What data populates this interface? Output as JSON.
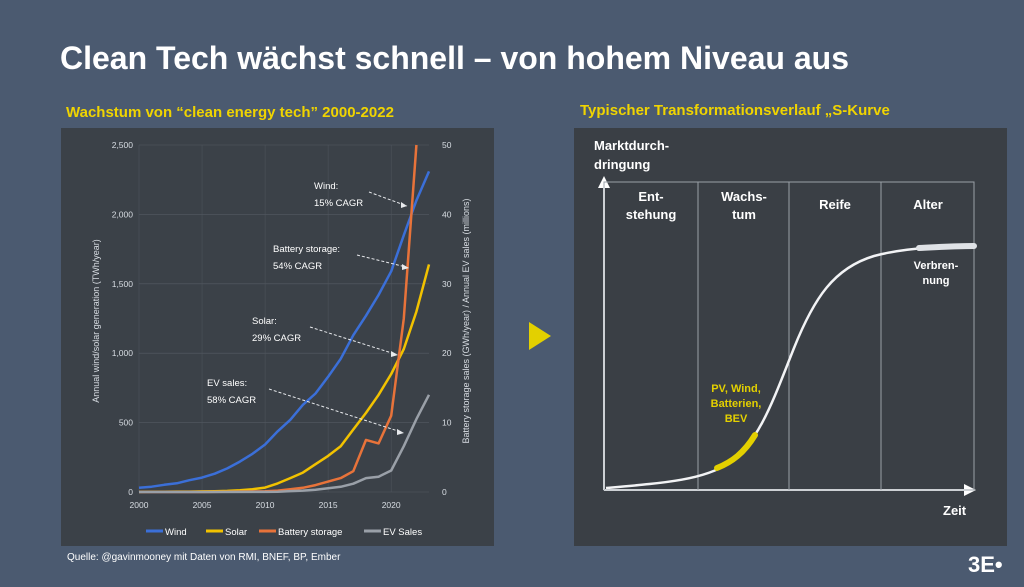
{
  "slide": {
    "title": "Clean Tech wächst schnell – von hohem Niveau aus",
    "left_subtitle": "Wachstum von “clean energy tech” 2000-2022",
    "right_subtitle": "Typischer Transformationsverlauf „S-Kurve",
    "source": "Quelle: @gavinmooney mit Daten von RMI, BNEF, BP, Ember",
    "brand": "3E",
    "brand_dot": "•"
  },
  "colors": {
    "wind": "#3b6fd8",
    "solar": "#f2c200",
    "battery": "#e8733a",
    "ev": "#9aa0a8",
    "accent_yellow": "#e3d000"
  },
  "chart_data": [
    {
      "type": "line",
      "title": "",
      "xlabel": "",
      "ylabel": "Annual wind/solar generation (TWh/year)",
      "y2label": "Battery storage sales (GWh/year) / Annual EV sales (millions)",
      "xlim": [
        2000,
        2023
      ],
      "ylim": [
        0,
        2500
      ],
      "y2lim": [
        0,
        50
      ],
      "x_ticks": [
        "2000",
        "2005",
        "2010",
        "2015",
        "2020"
      ],
      "y_ticks": [
        "0",
        "500",
        "1,000",
        "1,500",
        "2,000",
        "2,500"
      ],
      "y2_ticks": [
        "0",
        "10",
        "20",
        "30",
        "40",
        "50"
      ],
      "grid": true,
      "legend_position": "bottom",
      "series": [
        {
          "name": "Wind",
          "axis": "left",
          "color": "#3b6fd8",
          "x": [
            2000,
            2001,
            2002,
            2003,
            2004,
            2005,
            2006,
            2007,
            2008,
            2009,
            2010,
            2011,
            2012,
            2013,
            2014,
            2015,
            2016,
            2017,
            2018,
            2019,
            2020,
            2021,
            2022,
            2023
          ],
          "values": [
            31,
            38,
            52,
            63,
            85,
            104,
            132,
            170,
            219,
            275,
            342,
            437,
            520,
            628,
            710,
            830,
            960,
            1130,
            1270,
            1420,
            1590,
            1850,
            2100,
            2310
          ]
        },
        {
          "name": "Solar",
          "axis": "left",
          "color": "#f2c200",
          "x": [
            2000,
            2001,
            2002,
            2003,
            2004,
            2005,
            2006,
            2007,
            2008,
            2009,
            2010,
            2011,
            2012,
            2013,
            2014,
            2015,
            2016,
            2017,
            2018,
            2019,
            2020,
            2021,
            2022,
            2023
          ],
          "values": [
            1,
            2,
            2,
            3,
            3,
            4,
            6,
            8,
            12,
            20,
            32,
            62,
            100,
            140,
            200,
            260,
            330,
            450,
            570,
            700,
            850,
            1030,
            1300,
            1640
          ]
        },
        {
          "name": "Battery storage",
          "axis": "right",
          "color": "#e8733a",
          "x": [
            2000,
            2005,
            2010,
            2011,
            2012,
            2013,
            2014,
            2015,
            2016,
            2017,
            2018,
            2019,
            2020,
            2021,
            2022
          ],
          "values": [
            0,
            0,
            0.1,
            0.2,
            0.4,
            0.6,
            1,
            1.5,
            2,
            3,
            7.5,
            7,
            11,
            25,
            50
          ]
        },
        {
          "name": "EV Sales",
          "axis": "right",
          "color": "#9aa0a8",
          "x": [
            2000,
            2005,
            2010,
            2011,
            2012,
            2013,
            2014,
            2015,
            2016,
            2017,
            2018,
            2019,
            2020,
            2021,
            2022,
            2023
          ],
          "values": [
            0,
            0,
            0.02,
            0.05,
            0.13,
            0.2,
            0.32,
            0.55,
            0.75,
            1.2,
            2.0,
            2.2,
            3.1,
            6.6,
            10.5,
            14
          ]
        }
      ],
      "annotations": [
        {
          "line1": "Wind:",
          "line2": "15% CAGR"
        },
        {
          "line1": "Battery storage:",
          "line2": "54% CAGR"
        },
        {
          "line1": "Solar:",
          "line2": "29% CAGR"
        },
        {
          "line1": "EV sales:",
          "line2": "58% CAGR"
        }
      ]
    },
    {
      "type": "line",
      "title": "",
      "ylabel_line1": "Marktdurch-",
      "ylabel_line2": "dringung",
      "xlabel": "Zeit",
      "phases": [
        {
          "line1": "Ent-",
          "line2": "stehung"
        },
        {
          "line1": "Wachs-",
          "line2": "tum"
        },
        {
          "line1": "Reife",
          "line2": ""
        },
        {
          "line1": "Alter",
          "line2": ""
        }
      ],
      "highlight_growth": [
        "PV, Wind,",
        "Batterien,",
        "BEV"
      ],
      "highlight_old": [
        "Verbren-",
        "nung"
      ]
    }
  ]
}
